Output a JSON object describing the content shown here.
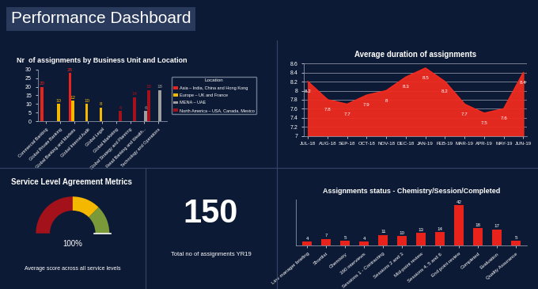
{
  "header": {
    "title": "Performance Dashboard"
  },
  "chart_data": [
    {
      "type": "bar",
      "title": "Nr  of assignments by Business Unit and Location",
      "categories": [
        "Commercial Banking",
        "Global Private Banking",
        "Global Banking and Markets",
        "Global Internal Audit",
        "Global Legal",
        "Global Marketing",
        "Global Strategy and Planning",
        "Retail Banking and Wealth...",
        "Technology and Operations"
      ],
      "series": [
        {
          "name": "Asia – India, China and Hong Kong",
          "color": "#e8231b",
          "values": [
            20,
            null,
            28,
            null,
            null,
            null,
            null,
            null,
            null
          ]
        },
        {
          "name": "Europe – UK and France",
          "color": "#f5b800",
          "values": [
            null,
            10,
            12,
            10,
            8,
            null,
            null,
            null,
            null
          ]
        },
        {
          "name": "MENA – UAE",
          "color": "#9e9e9e",
          "values": [
            null,
            null,
            null,
            null,
            null,
            null,
            null,
            6,
            18
          ]
        },
        {
          "name": "North America – USA, Canada, Mexico",
          "color": "#a3121a",
          "values": [
            null,
            null,
            null,
            null,
            null,
            6,
            14,
            18,
            null
          ]
        }
      ],
      "ylim": [
        0,
        30
      ],
      "yticks": [
        0,
        5,
        10,
        15,
        20,
        25,
        30
      ],
      "legend": "center left",
      "legend_title": "Location",
      "data_labels": true
    },
    {
      "type": "area",
      "title": "Average duration of assignments",
      "categories": [
        "JUL-18",
        "AUG-18",
        "SEP-18",
        "OCT-18",
        "NOV-18",
        "DEC-18",
        "JAN-19",
        "FEB-19",
        "MAR-19",
        "APR-19",
        "MAY-19",
        "JUN-19"
      ],
      "values": [
        8.2,
        7.8,
        7.7,
        7.9,
        8,
        8.3,
        8.5,
        8.2,
        7.7,
        7.5,
        7.6,
        8.4
      ],
      "color": "#ee2a1f",
      "ylim": [
        7,
        8.6
      ],
      "yticks": [
        7,
        7.2,
        7.4,
        7.6,
        7.8,
        8,
        8.2,
        8.4,
        8.6
      ],
      "grid": true,
      "data_labels": true
    },
    {
      "type": "gauge",
      "title": "Service Level Agreement Metrics",
      "value": 100,
      "value_label": "100%",
      "subtitle": "Average score across all service levels",
      "colors": [
        "#a3121a",
        "#f5b800",
        "#7a9a3a"
      ]
    },
    {
      "type": "kpi",
      "value": 150,
      "subtitle": "Total no of assignments YR19"
    },
    {
      "type": "bar",
      "title": "Assignments status - Chemistry/Session/Completed",
      "categories": [
        "Line manager briefing",
        "Shortlist",
        "Chemistry",
        "360 interviews",
        "Sessions 1 - Contracting",
        "Sessions 2 and 3",
        "Mid-point review",
        "Sessions 4, 5 and 6",
        "End point review",
        "Completed",
        "Evaluation",
        "Quality Assurance"
      ],
      "values": [
        4,
        7,
        5,
        4,
        11,
        10,
        13,
        14,
        42,
        18,
        17,
        5
      ],
      "color": "#e8231b",
      "ylim": [
        0,
        48
      ],
      "yticks": [],
      "tick_labels": "x",
      "data_labels": true
    }
  ]
}
